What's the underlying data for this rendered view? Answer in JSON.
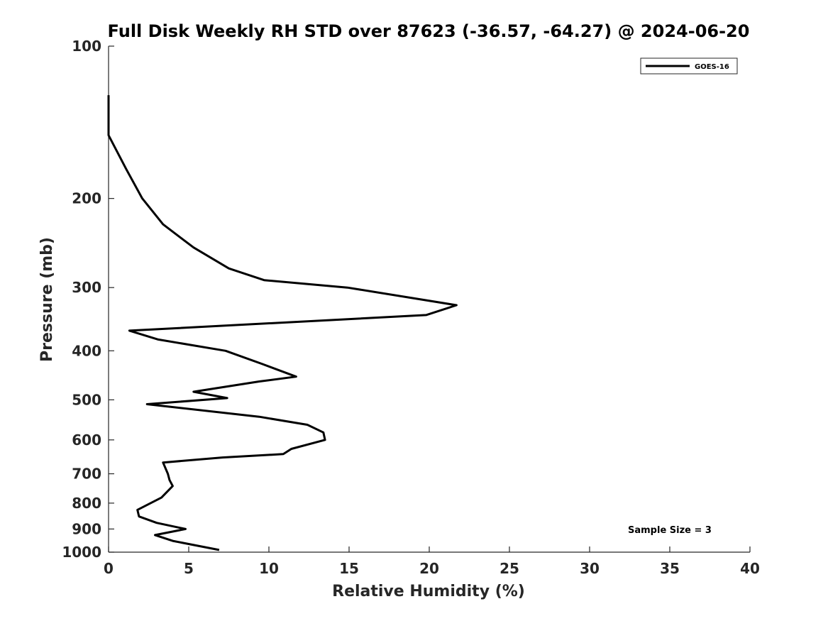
{
  "chart_data": {
    "type": "line",
    "title": "Full Disk Weekly RH STD over 87623 (-36.57, -64.27) @ 2024-06-20",
    "xlabel": "Relative Humidity (%)",
    "ylabel": "Pressure (mb)",
    "xlim": [
      0,
      40
    ],
    "ylim": [
      1000,
      100
    ],
    "y_scale": "log",
    "y_reversed": true,
    "x_ticks": [
      0,
      5,
      10,
      15,
      20,
      25,
      30,
      35,
      40
    ],
    "y_ticks": [
      100,
      200,
      300,
      400,
      500,
      600,
      700,
      800,
      900,
      1000
    ],
    "grid": false,
    "legend_position": "top-right",
    "annotation": "Sample Size = 3",
    "series": [
      {
        "name": "GOES-16",
        "color": "#000000",
        "points": [
          {
            "x": 0.0,
            "y": 125
          },
          {
            "x": 0.0,
            "y": 150
          },
          {
            "x": 1.1,
            "y": 175
          },
          {
            "x": 2.1,
            "y": 200
          },
          {
            "x": 3.4,
            "y": 225
          },
          {
            "x": 5.3,
            "y": 250
          },
          {
            "x": 7.5,
            "y": 275
          },
          {
            "x": 9.7,
            "y": 290
          },
          {
            "x": 14.9,
            "y": 300
          },
          {
            "x": 21.7,
            "y": 325
          },
          {
            "x": 19.8,
            "y": 340
          },
          {
            "x": 1.3,
            "y": 365
          },
          {
            "x": 3.1,
            "y": 380
          },
          {
            "x": 7.3,
            "y": 400
          },
          {
            "x": 9.6,
            "y": 425
          },
          {
            "x": 11.7,
            "y": 450
          },
          {
            "x": 9.4,
            "y": 460
          },
          {
            "x": 5.3,
            "y": 482
          },
          {
            "x": 7.4,
            "y": 496
          },
          {
            "x": 2.4,
            "y": 510
          },
          {
            "x": 9.4,
            "y": 540
          },
          {
            "x": 12.4,
            "y": 560
          },
          {
            "x": 13.4,
            "y": 580
          },
          {
            "x": 13.5,
            "y": 600
          },
          {
            "x": 11.4,
            "y": 625
          },
          {
            "x": 10.9,
            "y": 640
          },
          {
            "x": 7.1,
            "y": 650
          },
          {
            "x": 3.4,
            "y": 665
          },
          {
            "x": 3.7,
            "y": 700
          },
          {
            "x": 3.8,
            "y": 720
          },
          {
            "x": 4.0,
            "y": 740
          },
          {
            "x": 3.3,
            "y": 780
          },
          {
            "x": 1.8,
            "y": 825
          },
          {
            "x": 1.9,
            "y": 850
          },
          {
            "x": 3.0,
            "y": 875
          },
          {
            "x": 4.8,
            "y": 900
          },
          {
            "x": 2.9,
            "y": 925
          },
          {
            "x": 4.0,
            "y": 950
          },
          {
            "x": 6.9,
            "y": 990
          }
        ]
      }
    ]
  }
}
